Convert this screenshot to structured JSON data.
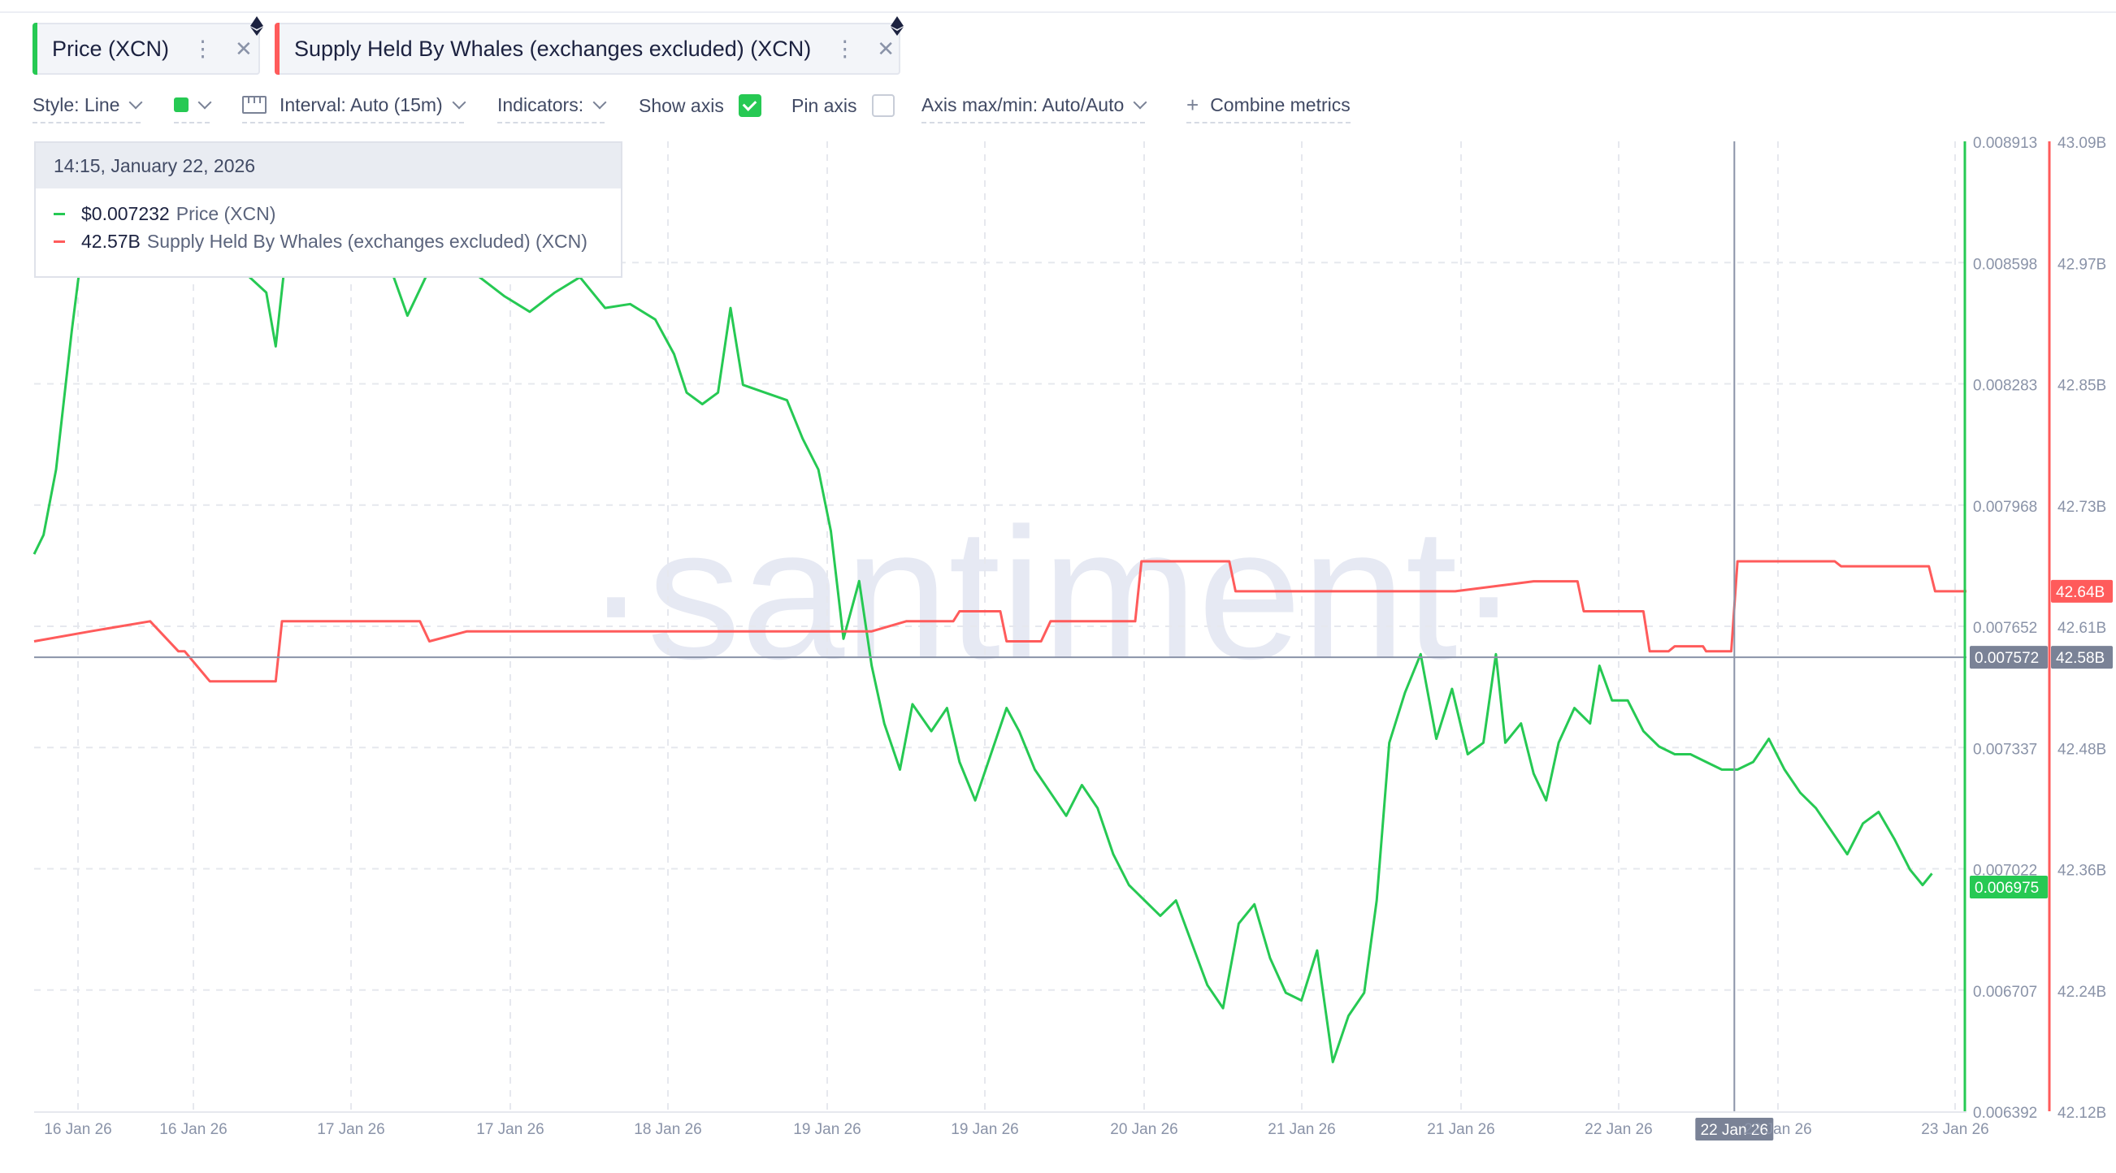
{
  "chips": [
    {
      "label": "Price (XCN)",
      "color": "#26c953"
    },
    {
      "label": "Supply Held By Whales (exchanges excluded) (XCN)",
      "color": "#ff5b5b"
    }
  ],
  "toolbar": {
    "style_label": "Style: Line",
    "interval_label": "Interval: Auto (15m)",
    "indicators_label": "Indicators:",
    "show_axis_label": "Show axis",
    "pin_axis_label": "Pin axis",
    "axis_maxmin_label": "Axis max/min: Auto/Auto",
    "combine_label": "Combine metrics"
  },
  "tooltip": {
    "date": "14:15, January 22, 2026",
    "rows": [
      {
        "value": "$0.007232",
        "name": "Price (XCN)",
        "color": "#26c953"
      },
      {
        "value": "42.57B",
        "name": "Supply Held By Whales (exchanges excluded) (XCN)",
        "color": "#ff5b5b"
      }
    ]
  },
  "watermark": "·santiment·",
  "chart_data": {
    "type": "line",
    "x_ticks": [
      "16 Jan 26",
      "16 Jan 26",
      "17 Jan 26",
      "17 Jan 26",
      "18 Jan 26",
      "19 Jan 26",
      "19 Jan 26",
      "20 Jan 26",
      "21 Jan 26",
      "21 Jan 26",
      "22 Jan 26",
      "22 Jan 26",
      "23 Jan 26"
    ],
    "crosshair_x_label": "22 Jan 26",
    "price_axis": {
      "ticks": [
        "0.008913",
        "0.008598",
        "0.008283",
        "0.007968",
        "0.007652",
        "0.007337",
        "0.007022",
        "0.006707",
        "0.006392"
      ],
      "range": [
        0.006392,
        0.008913
      ],
      "current_label": "0.006975",
      "crosshair_label": "0.007572",
      "color": "#26c953"
    },
    "whale_axis": {
      "ticks": [
        "43.09B",
        "42.97B",
        "42.85B",
        "42.73B",
        "42.61B",
        "42.48B",
        "42.36B",
        "42.24B",
        "42.12B"
      ],
      "range": [
        42.12,
        43.09
      ],
      "current_label": "42.64B",
      "crosshair_label": "42.58B",
      "color": "#ff5b5b"
    },
    "series": [
      {
        "name": "Price (XCN)",
        "color": "#26c953",
        "points": [
          [
            0,
            0.00784
          ],
          [
            0.3,
            0.00789
          ],
          [
            0.7,
            0.00806
          ],
          [
            1.2,
            0.00842
          ],
          [
            1.6,
            0.00868
          ],
          [
            2.2,
            0.00876
          ],
          [
            2.8,
            0.00862
          ],
          [
            3.5,
            0.00868
          ],
          [
            4.2,
            0.00878
          ],
          [
            5,
            0.0087
          ],
          [
            5.8,
            0.00864
          ],
          [
            6.6,
            0.00858
          ],
          [
            7.4,
            0.00852
          ],
          [
            7.7,
            0.00838
          ],
          [
            8.0,
            0.0086
          ],
          [
            8.8,
            0.00872
          ],
          [
            9.6,
            0.00866
          ],
          [
            10.4,
            0.00866
          ],
          [
            11.2,
            0.00862
          ],
          [
            11.9,
            0.00846
          ],
          [
            12.6,
            0.00858
          ],
          [
            13.4,
            0.00864
          ],
          [
            14.2,
            0.00856
          ],
          [
            15,
            0.00851
          ],
          [
            15.8,
            0.00847
          ],
          [
            16.6,
            0.00852
          ],
          [
            17.4,
            0.00856
          ],
          [
            18.2,
            0.00848
          ],
          [
            19,
            0.00849
          ],
          [
            19.8,
            0.00845
          ],
          [
            20.4,
            0.00836
          ],
          [
            20.8,
            0.00826
          ],
          [
            21.3,
            0.00823
          ],
          [
            21.8,
            0.00826
          ],
          [
            22.2,
            0.00848
          ],
          [
            22.6,
            0.00828
          ],
          [
            23.3,
            0.00826
          ],
          [
            24.0,
            0.00824
          ],
          [
            24.5,
            0.00814
          ],
          [
            25.0,
            0.00806
          ],
          [
            25.4,
            0.0079
          ],
          [
            25.8,
            0.00762
          ],
          [
            26.3,
            0.00777
          ],
          [
            26.7,
            0.00755
          ],
          [
            27.1,
            0.0074
          ],
          [
            27.6,
            0.00728
          ],
          [
            28.0,
            0.00745
          ],
          [
            28.6,
            0.00738
          ],
          [
            29.1,
            0.00744
          ],
          [
            29.5,
            0.0073
          ],
          [
            30.0,
            0.0072
          ],
          [
            30.5,
            0.00732
          ],
          [
            31.0,
            0.00744
          ],
          [
            31.4,
            0.00738
          ],
          [
            31.9,
            0.00728
          ],
          [
            32.4,
            0.00722
          ],
          [
            32.9,
            0.00716
          ],
          [
            33.4,
            0.00724
          ],
          [
            33.9,
            0.00718
          ],
          [
            34.4,
            0.00706
          ],
          [
            34.9,
            0.00698
          ],
          [
            35.4,
            0.00694
          ],
          [
            35.9,
            0.0069
          ],
          [
            36.4,
            0.00694
          ],
          [
            36.9,
            0.00683
          ],
          [
            37.4,
            0.00672
          ],
          [
            37.9,
            0.00666
          ],
          [
            38.4,
            0.00688
          ],
          [
            38.9,
            0.00693
          ],
          [
            39.4,
            0.00679
          ],
          [
            39.9,
            0.0067
          ],
          [
            40.4,
            0.00668
          ],
          [
            40.9,
            0.00681
          ],
          [
            41.4,
            0.00652
          ],
          [
            41.9,
            0.00664
          ],
          [
            42.4,
            0.0067
          ],
          [
            42.8,
            0.00694
          ],
          [
            43.2,
            0.00735
          ],
          [
            43.7,
            0.00748
          ],
          [
            44.2,
            0.00758
          ],
          [
            44.7,
            0.00736
          ],
          [
            45.2,
            0.00749
          ],
          [
            45.7,
            0.00732
          ],
          [
            46.2,
            0.00735
          ],
          [
            46.6,
            0.00758
          ],
          [
            46.9,
            0.00735
          ],
          [
            47.4,
            0.0074
          ],
          [
            47.8,
            0.00727
          ],
          [
            48.2,
            0.0072
          ],
          [
            48.6,
            0.00735
          ],
          [
            49.1,
            0.00744
          ],
          [
            49.6,
            0.0074
          ],
          [
            49.9,
            0.00755
          ],
          [
            50.3,
            0.00746
          ],
          [
            50.8,
            0.00746
          ],
          [
            51.3,
            0.00738
          ],
          [
            51.8,
            0.00734
          ],
          [
            52.3,
            0.00732
          ],
          [
            52.8,
            0.00732
          ],
          [
            53.3,
            0.0073
          ],
          [
            53.8,
            0.00728
          ],
          [
            54.3,
            0.00728
          ],
          [
            54.8,
            0.0073
          ],
          [
            55.3,
            0.00736
          ],
          [
            55.8,
            0.00728
          ],
          [
            56.3,
            0.00722
          ],
          [
            56.8,
            0.00718
          ],
          [
            57.3,
            0.00712
          ],
          [
            57.8,
            0.00706
          ],
          [
            58.3,
            0.00714
          ],
          [
            58.8,
            0.00717
          ],
          [
            59.3,
            0.0071
          ],
          [
            59.8,
            0.00702
          ],
          [
            60.2,
            0.00698
          ],
          [
            60.5,
            0.00701
          ]
        ]
      },
      {
        "name": "Supply Held By Whales (exchanges excluded) (XCN)",
        "color": "#ff5b5b",
        "points": [
          [
            0,
            42.59
          ],
          [
            1.8,
            42.6
          ],
          [
            3.7,
            42.61
          ],
          [
            4.6,
            42.58
          ],
          [
            4.8,
            42.58
          ],
          [
            5.6,
            42.55
          ],
          [
            7.7,
            42.55
          ],
          [
            7.9,
            42.61
          ],
          [
            12.3,
            42.61
          ],
          [
            12.6,
            42.59
          ],
          [
            13.8,
            42.6
          ],
          [
            18.9,
            42.6
          ],
          [
            25.4,
            42.6
          ],
          [
            26.7,
            42.6
          ],
          [
            27.8,
            42.61
          ],
          [
            29.3,
            42.61
          ],
          [
            29.5,
            42.62
          ],
          [
            30.8,
            42.62
          ],
          [
            31.0,
            42.59
          ],
          [
            32.1,
            42.59
          ],
          [
            32.4,
            42.61
          ],
          [
            35.1,
            42.61
          ],
          [
            35.3,
            42.67
          ],
          [
            38.1,
            42.67
          ],
          [
            38.3,
            42.64
          ],
          [
            43.2,
            42.64
          ],
          [
            45.3,
            42.64
          ],
          [
            47.8,
            42.65
          ],
          [
            49.2,
            42.65
          ],
          [
            49.4,
            42.62
          ],
          [
            51.3,
            42.62
          ],
          [
            51.5,
            42.58
          ],
          [
            52.1,
            42.58
          ],
          [
            52.3,
            42.585
          ],
          [
            53.2,
            42.585
          ],
          [
            53.3,
            42.58
          ],
          [
            54.1,
            42.58
          ],
          [
            54.3,
            42.67
          ],
          [
            57.4,
            42.67
          ],
          [
            57.6,
            42.665
          ],
          [
            60.4,
            42.665
          ],
          [
            60.6,
            42.64
          ],
          [
            61.6,
            42.64
          ]
        ]
      }
    ],
    "x_domain": [
      0,
      61.6
    ],
    "crosshair": {
      "x": 54.2,
      "price": 0.007572,
      "whale": 42.58
    },
    "grid": true,
    "legend": "top-left"
  }
}
